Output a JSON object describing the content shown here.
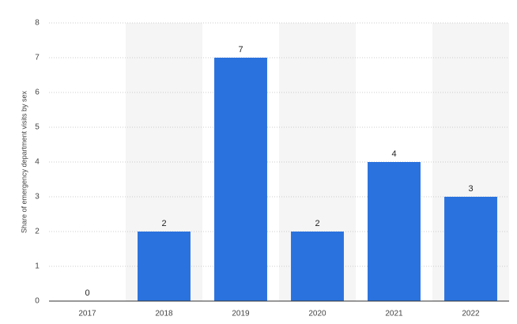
{
  "chart_data": {
    "type": "bar",
    "y_label": "Share of emergency department visits by sex",
    "categories": [
      "2017",
      "2018",
      "2019",
      "2020",
      "2021",
      "2022"
    ],
    "values": [
      0,
      2,
      7,
      2,
      4,
      3
    ],
    "color": "#2a72de",
    "ylim": [
      0,
      8
    ],
    "yticks": [
      0,
      1,
      2,
      3,
      4,
      5,
      6,
      7,
      8
    ],
    "grid": true
  }
}
